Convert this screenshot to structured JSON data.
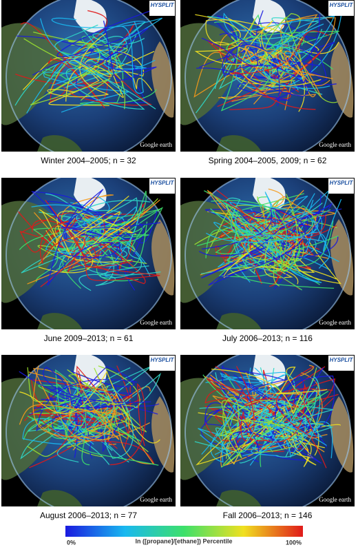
{
  "panels": [
    {
      "caption": "Winter 2004–2005; n = 32",
      "logo": "HYSPLIT",
      "watermark": "Google earth"
    },
    {
      "caption": "Spring 2004–2005, 2009; n = 62",
      "logo": "HYSPLIT",
      "watermark": "Google earth"
    },
    {
      "caption": "June 2009–2013; n = 61",
      "logo": "HYSPLIT",
      "watermark": "Google earth"
    },
    {
      "caption": "July 2006–2013; n = 116",
      "logo": "HYSPLIT",
      "watermark": "Google earth"
    },
    {
      "caption": "August 2006–2013; n = 77",
      "logo": "HYSPLIT",
      "watermark": "Google earth"
    },
    {
      "caption": "Fall 2006–2013; n = 146",
      "logo": "HYSPLIT",
      "watermark": "Google earth"
    }
  ],
  "colorbar": {
    "label": "ln ([propane]/[ethane]) Percentile",
    "min_label": "0%",
    "max_label": "100%"
  }
}
